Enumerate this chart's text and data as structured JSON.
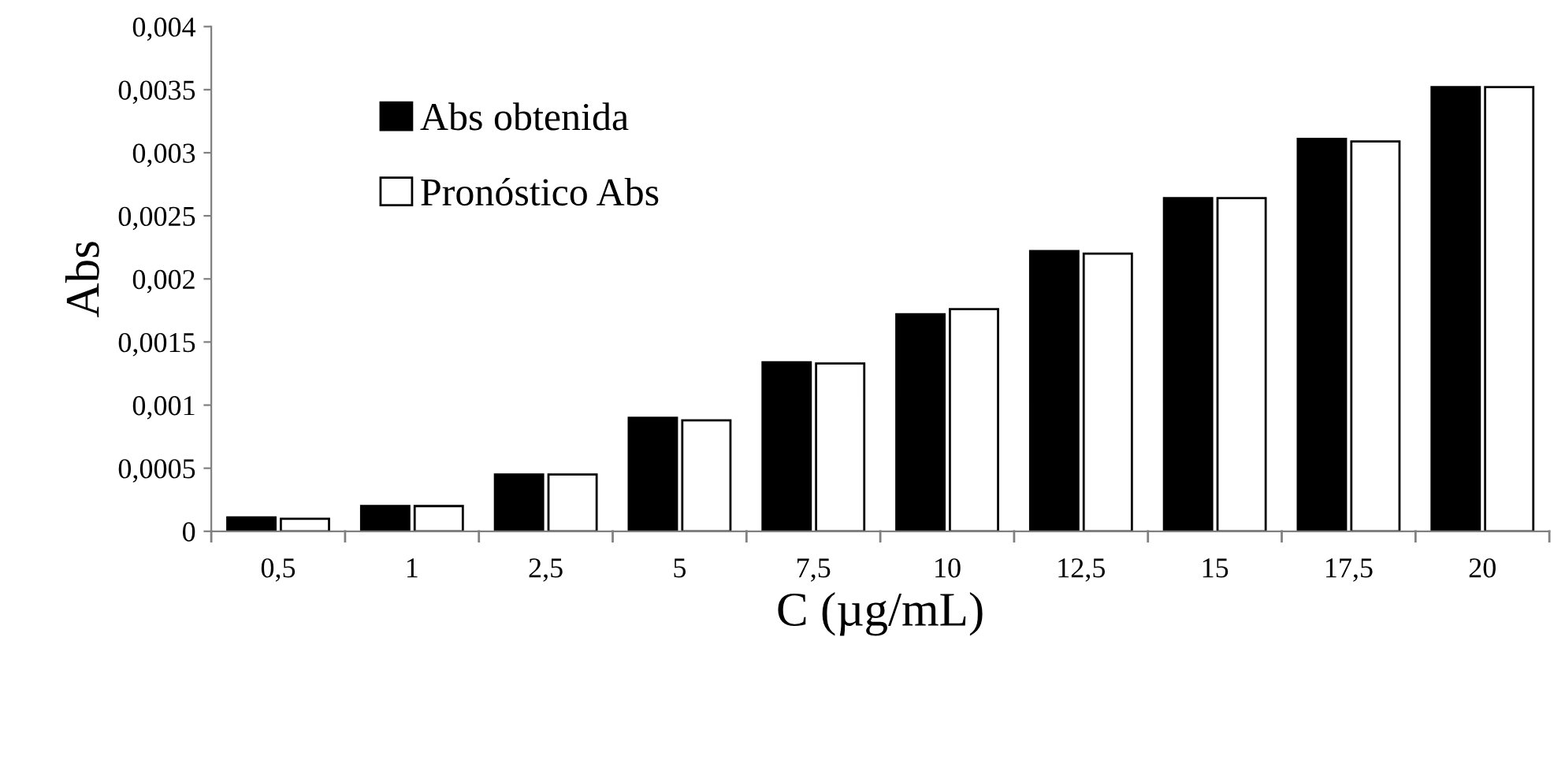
{
  "chart_data": {
    "type": "bar",
    "xlabel": "C (µg/mL)",
    "ylabel": "Abs",
    "categories": [
      "0,5",
      "1",
      "2,5",
      "5",
      "7,5",
      "10",
      "12,5",
      "15",
      "17,5",
      "20"
    ],
    "series": [
      {
        "name": "Abs obtenida",
        "color": "#000000",
        "values": [
          0.00011,
          0.0002,
          0.00045,
          0.0009,
          0.00134,
          0.00172,
          0.00222,
          0.00264,
          0.00311,
          0.00352
        ]
      },
      {
        "name": "Pronóstico Abs",
        "color": "#ffffff",
        "values": [
          0.0001,
          0.0002,
          0.00045,
          0.00088,
          0.00133,
          0.00176,
          0.0022,
          0.00264,
          0.00309,
          0.00352
        ]
      }
    ],
    "ylim": [
      0,
      0.004
    ],
    "yticks": [
      {
        "value": 0,
        "label": "0"
      },
      {
        "value": 0.0005,
        "label": "0,0005"
      },
      {
        "value": 0.001,
        "label": "0,001"
      },
      {
        "value": 0.0015,
        "label": "0,0015"
      },
      {
        "value": 0.002,
        "label": "0,002"
      },
      {
        "value": 0.0025,
        "label": "0,0025"
      },
      {
        "value": 0.003,
        "label": "0,003"
      },
      {
        "value": 0.0035,
        "label": "0,0035"
      },
      {
        "value": 0.004,
        "label": "0,004"
      }
    ],
    "grid": false,
    "legend": "top left"
  }
}
